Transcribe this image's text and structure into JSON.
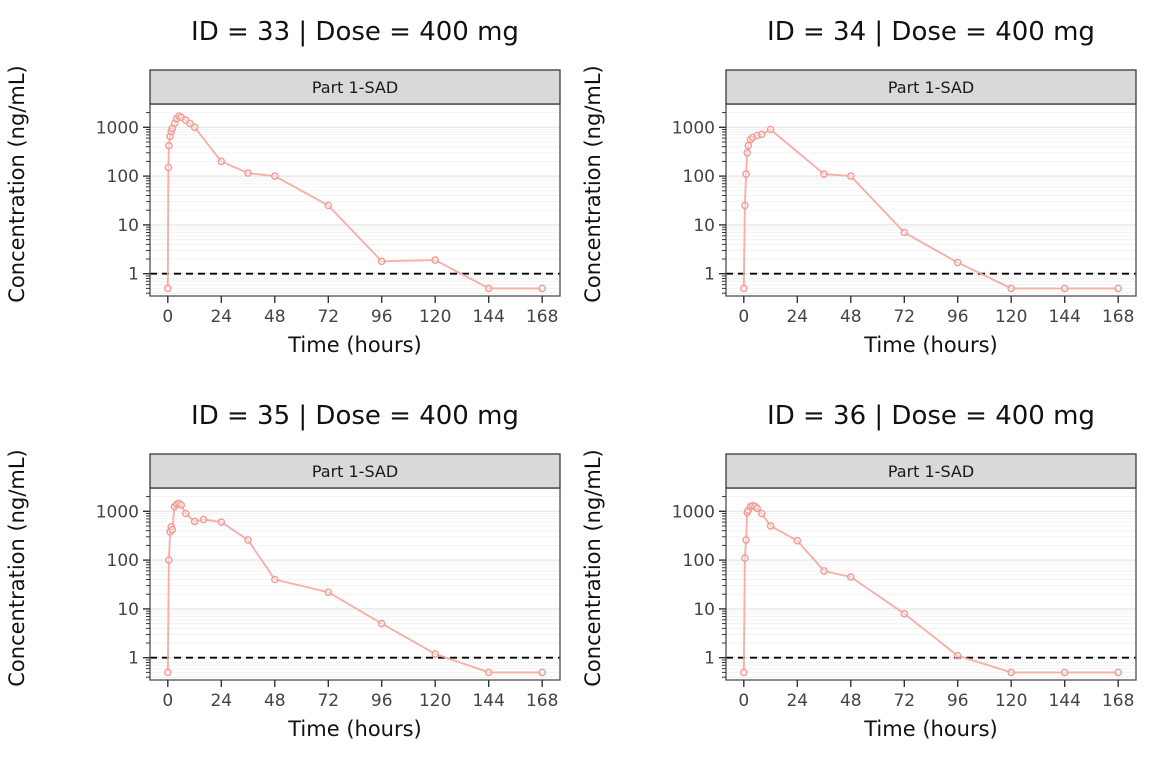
{
  "figure": {
    "xlabel": "Time (hours)",
    "ylabel": "Concentration (ng/mL)",
    "strip_label": "Part 1-SAD",
    "x_ticks": [
      0,
      24,
      48,
      72,
      96,
      120,
      144,
      168
    ],
    "y_ticks": [
      1,
      10,
      100,
      1000
    ],
    "x_range": [
      -8,
      176
    ],
    "y_range": [
      0.35,
      3000
    ],
    "y_scale": "log10",
    "lloq": 1,
    "grid": "horizontal-only",
    "legend": "none",
    "colors": {
      "line": "#f5a7a1",
      "point_stroke": "#f19b94",
      "point_fill": "#ffffff",
      "strip_bg": "#d9d9d9",
      "grid_major": "#e6e6e6",
      "grid_minor": "#f3f3f3",
      "axis": "#333333",
      "border": "#4d4d4d",
      "lloq_line": "#000000"
    }
  },
  "chart_data": [
    {
      "type": "line",
      "title": "ID = 33 | Dose = 400 mg",
      "strip": "Part 1-SAD",
      "xlabel": "Time (hours)",
      "ylabel": "Concentration (ng/mL)",
      "x": [
        0,
        0.25,
        0.5,
        1,
        1.5,
        2,
        3,
        4,
        5,
        6,
        8,
        10,
        12,
        24,
        36,
        48,
        72,
        96,
        120,
        144,
        168
      ],
      "y": [
        0.5,
        150,
        420,
        650,
        820,
        950,
        1200,
        1500,
        1700,
        1600,
        1400,
        1200,
        1000,
        200,
        115,
        100,
        25,
        1.8,
        1.9,
        0.5,
        0.5
      ]
    },
    {
      "type": "line",
      "title": "ID = 34 | Dose = 400 mg",
      "strip": "Part 1-SAD",
      "xlabel": "Time (hours)",
      "ylabel": "Concentration (ng/mL)",
      "x": [
        0,
        0.5,
        1,
        1.5,
        2,
        3,
        4,
        6,
        8,
        12,
        36,
        48,
        72,
        96,
        120,
        144,
        168
      ],
      "y": [
        0.5,
        25,
        110,
        300,
        420,
        560,
        620,
        680,
        720,
        900,
        110,
        100,
        7,
        1.7,
        0.5,
        0.5,
        0.5
      ]
    },
    {
      "type": "line",
      "title": "ID = 35 | Dose = 400 mg",
      "strip": "Part 1-SAD",
      "xlabel": "Time (hours)",
      "ylabel": "Concentration (ng/mL)",
      "x": [
        0,
        0.5,
        1,
        1.5,
        2,
        3,
        4,
        5,
        6,
        8,
        12,
        16,
        24,
        36,
        48,
        72,
        96,
        120,
        144,
        168
      ],
      "y": [
        0.5,
        100,
        380,
        480,
        420,
        1250,
        1400,
        1450,
        1350,
        900,
        620,
        680,
        600,
        260,
        40,
        22,
        5,
        1.2,
        0.5,
        0.5
      ]
    },
    {
      "type": "line",
      "title": "ID = 36 | Dose = 400 mg",
      "strip": "Part 1-SAD",
      "xlabel": "Time (hours)",
      "ylabel": "Concentration (ng/mL)",
      "x": [
        0,
        0.5,
        1,
        1.5,
        2,
        3,
        4,
        5,
        6,
        8,
        12,
        24,
        36,
        48,
        72,
        96,
        120,
        144,
        168
      ],
      "y": [
        0.5,
        110,
        260,
        950,
        1050,
        1250,
        1300,
        1250,
        1150,
        900,
        500,
        250,
        60,
        45,
        8,
        1.1,
        0.5,
        0.5,
        0.5
      ]
    }
  ]
}
